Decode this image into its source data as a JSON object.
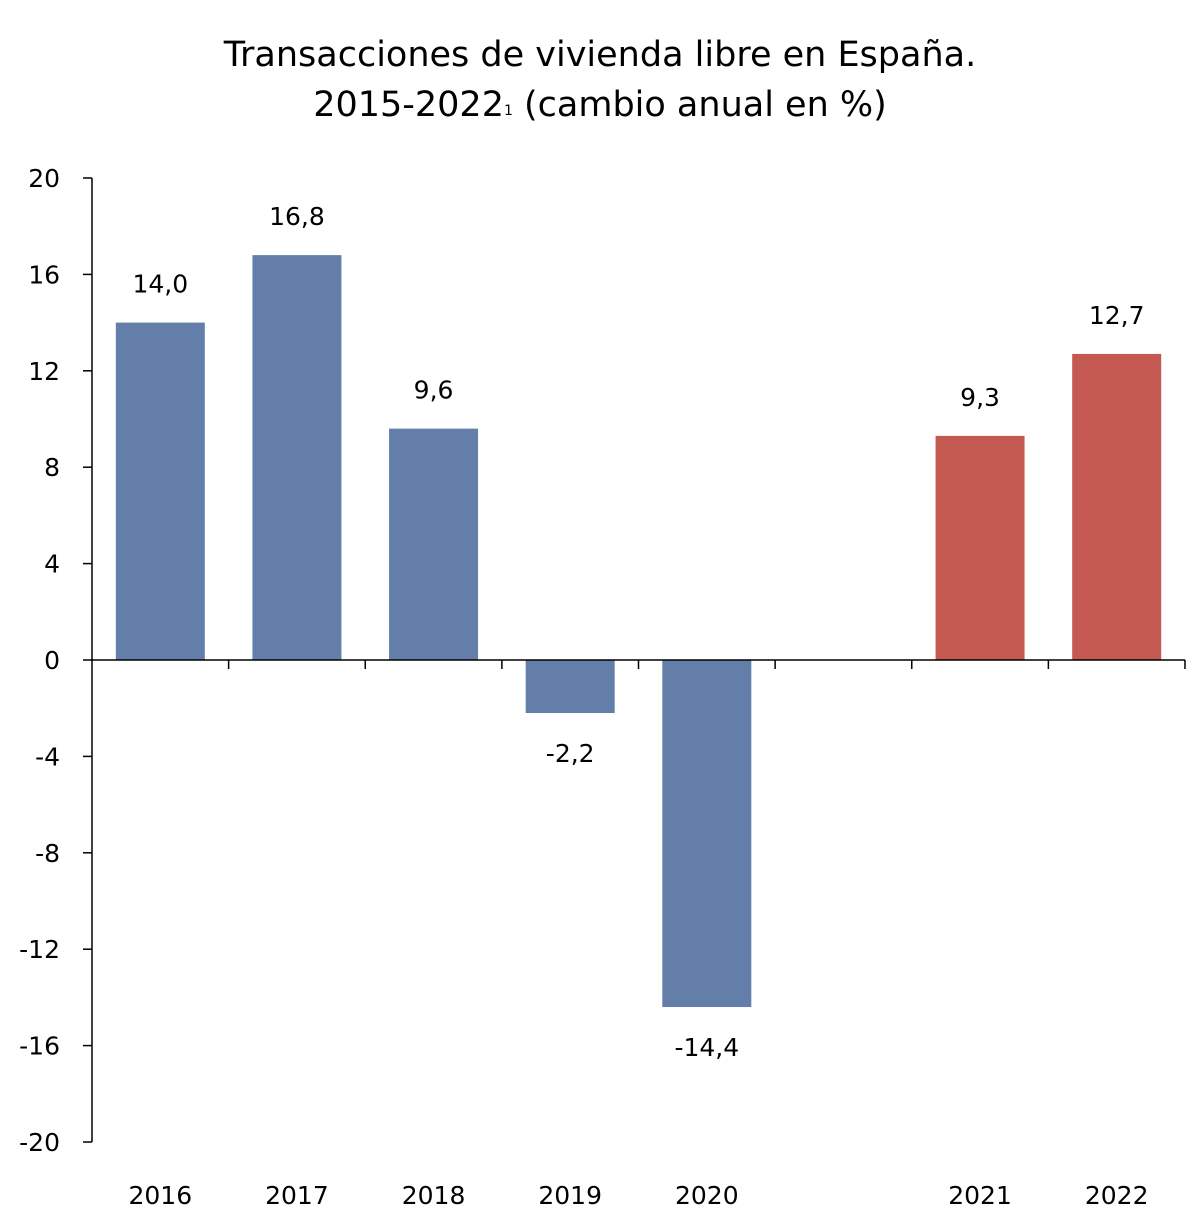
{
  "title_line1": "Transacciones de vivienda libre en España.",
  "title_line2_main": "2015-2022",
  "title_line2_sup": "1",
  "title_line2_tail": " (cambio anual en %)",
  "colors": {
    "blue": "#627ea9",
    "red": "#c45951",
    "axis": "#000000"
  },
  "chart_data": {
    "type": "bar",
    "title": "Transacciones de vivienda libre en España. 2015-2022 (cambio anual en %)",
    "categories": [
      "2016",
      "2017",
      "2018",
      "2019",
      "2020",
      "",
      "2021",
      "2022"
    ],
    "values": [
      14.0,
      16.8,
      9.6,
      -2.2,
      -14.4,
      null,
      9.3,
      12.7
    ],
    "labels": [
      "14,0",
      "16,8",
      "9,6",
      "-2,2",
      "-14,4",
      "",
      "9,3",
      "12,7"
    ],
    "bar_colors": [
      "blue",
      "blue",
      "blue",
      "blue",
      "blue",
      "",
      "red",
      "red"
    ],
    "ylim": [
      -20,
      20
    ],
    "yticks": [
      20,
      16,
      12,
      8,
      4,
      0,
      -4,
      -8,
      -12,
      -16,
      -20
    ],
    "ytick_labels": [
      "20",
      "16",
      "12",
      "8",
      "4",
      "0",
      "-4",
      "-8",
      "-12",
      "-16",
      "-20"
    ],
    "xlabel": "",
    "ylabel": "",
    "grid": false
  }
}
